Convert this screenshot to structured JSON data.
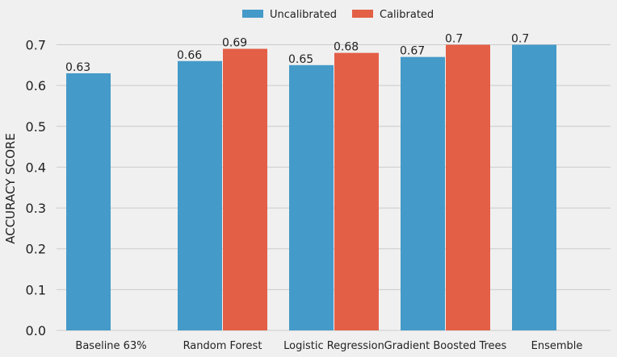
{
  "chart_data": {
    "type": "bar",
    "categories": [
      "Baseline 63%",
      "Random Forest",
      "Logistic Regression",
      "Gradient Boosted Trees",
      "Ensemble"
    ],
    "series": [
      {
        "name": "Uncalibrated",
        "color": "#449ac8",
        "values": [
          0.63,
          0.66,
          0.65,
          0.67,
          0.7
        ]
      },
      {
        "name": "Calibrated",
        "color": "#e35f46",
        "values": [
          null,
          0.69,
          0.68,
          0.7,
          null
        ]
      }
    ],
    "data_labels": [
      [
        "0.63",
        "0.66",
        "0.65",
        "0.67",
        "0.7"
      ],
      [
        "",
        "0.69",
        "0.68",
        "0.7",
        ""
      ]
    ],
    "yticks": [
      0.0,
      0.1,
      0.2,
      0.3,
      0.4,
      0.5,
      0.6,
      0.7
    ],
    "ytick_labels": [
      "0.0",
      "0.1",
      "0.2",
      "0.3",
      "0.4",
      "0.5",
      "0.6",
      "0.7"
    ],
    "ylabel": "ACCURACY SCORE",
    "xlabel": "",
    "title": "",
    "ylim": [
      0,
      0.75
    ],
    "grid": true,
    "legend": "top-center"
  }
}
